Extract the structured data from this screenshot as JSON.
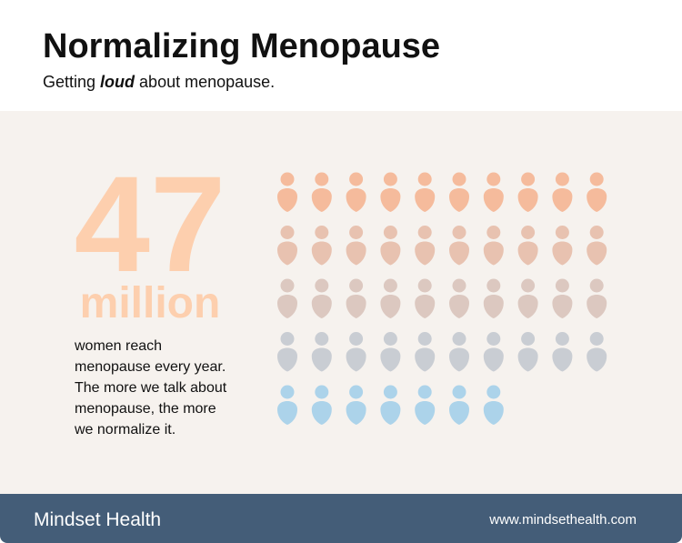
{
  "header": {
    "title": "Normalizing Menopause",
    "subtitle": {
      "before": "Getting ",
      "emphasis": "loud",
      "after": " about menopause."
    }
  },
  "stat": {
    "number": 47,
    "unit": "million",
    "description": [
      "women reach",
      "menopause every year.",
      "The more we talk about",
      "menopause, the more",
      "we normalize it."
    ],
    "row_colors": [
      "#f5bb9c",
      "#e8c2b0",
      "#dcc8c0",
      "#c9cdd3",
      "#acd3ea"
    ],
    "number_color": "#fdcfae"
  },
  "footer": {
    "brand": {
      "first": "Mindset",
      "second": "Health"
    },
    "url": "www.mindsethealth.com"
  }
}
